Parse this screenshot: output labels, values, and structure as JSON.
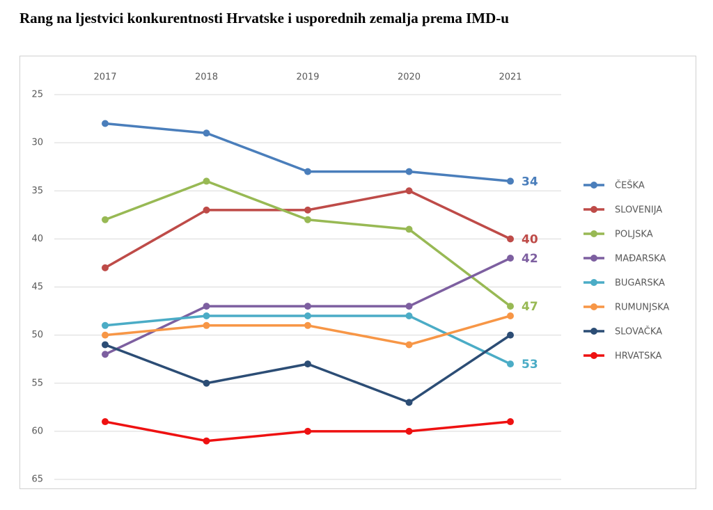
{
  "chart_data": {
    "type": "line",
    "title": "Rang na ljestvici  konkurentnosti Hrvatske i usporednih zemalja prema IMD-u",
    "categories": [
      "2017",
      "2018",
      "2019",
      "2020",
      "2021"
    ],
    "series": [
      {
        "name": "ČEŠKA",
        "color": "#4a7ebb",
        "values": [
          28,
          29,
          33,
          33,
          34
        ],
        "label_last": true
      },
      {
        "name": "SLOVENIJA",
        "color": "#be4b48",
        "values": [
          43,
          37,
          37,
          35,
          40
        ],
        "label_last": true
      },
      {
        "name": "POLJSKA",
        "color": "#98b954",
        "values": [
          38,
          34,
          38,
          39,
          47
        ],
        "label_last": true
      },
      {
        "name": "MAĐARSKA",
        "color": "#7d5fa0",
        "values": [
          52,
          47,
          47,
          47,
          42
        ],
        "label_last": true
      },
      {
        "name": "BUGARSKA",
        "color": "#4bacc6",
        "values": [
          49,
          48,
          48,
          48,
          53
        ],
        "label_last": true
      },
      {
        "name": "RUMUNJSKA",
        "color": "#f79646",
        "values": [
          50,
          49,
          49,
          51,
          48
        ],
        "label_last": false
      },
      {
        "name": "SLOVAČKA",
        "color": "#2c4d75",
        "values": [
          51,
          55,
          53,
          57,
          50
        ],
        "label_last": false
      },
      {
        "name": "HRVATSKA",
        "color": "#ee1111",
        "values": [
          59,
          61,
          60,
          60,
          59
        ],
        "label_last": false
      }
    ],
    "ylim": [
      25,
      65
    ],
    "yticks": [
      25,
      30,
      35,
      40,
      45,
      50,
      55,
      60,
      65
    ],
    "invert_y": true,
    "grid": true,
    "legend": "right"
  }
}
